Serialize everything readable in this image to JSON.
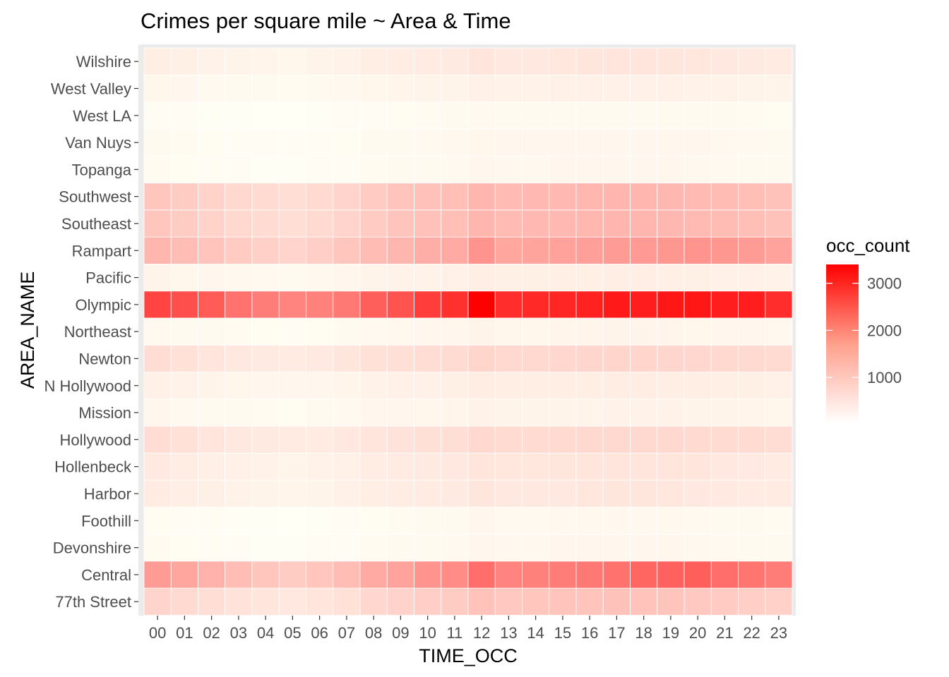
{
  "chart_data": {
    "type": "heatmap",
    "title": "Crimes per square mile ~ Area & Time",
    "xlabel": "TIME_OCC",
    "ylabel": "AREA_NAME",
    "x": [
      "00",
      "01",
      "02",
      "03",
      "04",
      "05",
      "06",
      "07",
      "08",
      "09",
      "10",
      "11",
      "12",
      "13",
      "14",
      "15",
      "16",
      "17",
      "18",
      "19",
      "20",
      "21",
      "22",
      "23"
    ],
    "y": [
      "77th Street",
      "Central",
      "Devonshire",
      "Foothill",
      "Harbor",
      "Hollenbeck",
      "Hollywood",
      "Mission",
      "N Hollywood",
      "Newton",
      "Northeast",
      "Olympic",
      "Pacific",
      "Rampart",
      "Southeast",
      "Southwest",
      "Topanga",
      "Van Nuys",
      "West LA",
      "West Valley",
      "Wilshire"
    ],
    "values": [
      [
        600,
        520,
        470,
        410,
        360,
        330,
        380,
        420,
        560,
        610,
        660,
        700,
        820,
        760,
        780,
        790,
        810,
        830,
        820,
        800,
        760,
        720,
        680,
        640
      ],
      [
        1350,
        1200,
        1050,
        900,
        780,
        700,
        780,
        900,
        1150,
        1250,
        1450,
        1550,
        1950,
        1650,
        1700,
        1750,
        1800,
        1900,
        2050,
        2100,
        2150,
        1950,
        1850,
        1750
      ],
      [
        80,
        70,
        60,
        50,
        45,
        40,
        50,
        60,
        80,
        90,
        100,
        110,
        140,
        120,
        120,
        130,
        130,
        130,
        130,
        130,
        120,
        110,
        100,
        90
      ],
      [
        70,
        60,
        50,
        45,
        40,
        35,
        45,
        55,
        70,
        80,
        90,
        100,
        130,
        110,
        110,
        120,
        120,
        120,
        120,
        120,
        110,
        100,
        90,
        80
      ],
      [
        300,
        260,
        230,
        200,
        180,
        160,
        180,
        210,
        260,
        280,
        300,
        310,
        360,
        330,
        330,
        340,
        350,
        360,
        360,
        350,
        340,
        320,
        300,
        290
      ],
      [
        320,
        280,
        240,
        210,
        190,
        170,
        190,
        220,
        270,
        290,
        310,
        330,
        380,
        350,
        350,
        360,
        370,
        380,
        380,
        370,
        360,
        340,
        320,
        300
      ],
      [
        480,
        430,
        380,
        340,
        310,
        290,
        300,
        330,
        380,
        410,
        440,
        470,
        540,
        500,
        510,
        520,
        530,
        540,
        540,
        530,
        520,
        510,
        500,
        480
      ],
      [
        130,
        110,
        100,
        90,
        80,
        70,
        90,
        110,
        130,
        140,
        150,
        160,
        200,
        170,
        170,
        180,
        180,
        190,
        190,
        190,
        180,
        170,
        160,
        150
      ],
      [
        220,
        190,
        170,
        150,
        140,
        130,
        140,
        160,
        200,
        210,
        220,
        230,
        270,
        250,
        250,
        260,
        260,
        270,
        270,
        260,
        250,
        240,
        230,
        220
      ],
      [
        480,
        430,
        380,
        340,
        310,
        290,
        320,
        360,
        420,
        450,
        480,
        510,
        580,
        540,
        550,
        560,
        570,
        580,
        580,
        570,
        560,
        540,
        520,
        500
      ],
      [
        110,
        100,
        90,
        80,
        70,
        60,
        75,
        90,
        110,
        120,
        130,
        140,
        170,
        150,
        150,
        160,
        160,
        170,
        170,
        160,
        150,
        140,
        130,
        120
      ],
      [
        2500,
        2350,
        2200,
        1900,
        1750,
        1650,
        1700,
        1800,
        2150,
        2300,
        2600,
        2750,
        3400,
        2800,
        2850,
        2900,
        2950,
        3050,
        3000,
        3100,
        3100,
        3000,
        3000,
        2800
      ],
      [
        170,
        150,
        130,
        120,
        110,
        100,
        120,
        140,
        180,
        190,
        200,
        210,
        250,
        230,
        230,
        240,
        240,
        250,
        250,
        240,
        230,
        220,
        210,
        200
      ],
      [
        1000,
        900,
        800,
        720,
        650,
        600,
        680,
        780,
        920,
        1000,
        1100,
        1150,
        1450,
        1200,
        1230,
        1260,
        1300,
        1350,
        1380,
        1400,
        1450,
        1400,
        1350,
        1250
      ],
      [
        780,
        700,
        620,
        550,
        500,
        460,
        520,
        600,
        720,
        790,
        850,
        880,
        1000,
        930,
        950,
        960,
        980,
        1000,
        990,
        970,
        940,
        910,
        880,
        840
      ],
      [
        780,
        700,
        620,
        550,
        500,
        460,
        520,
        600,
        720,
        790,
        850,
        880,
        1000,
        930,
        950,
        960,
        980,
        1000,
        990,
        970,
        940,
        910,
        880,
        840
      ],
      [
        80,
        70,
        60,
        50,
        45,
        40,
        50,
        60,
        80,
        90,
        100,
        110,
        140,
        120,
        120,
        130,
        130,
        130,
        130,
        130,
        120,
        110,
        100,
        90
      ],
      [
        90,
        80,
        70,
        60,
        55,
        50,
        60,
        70,
        90,
        100,
        110,
        120,
        150,
        130,
        130,
        140,
        140,
        140,
        140,
        140,
        130,
        120,
        110,
        100
      ],
      [
        60,
        50,
        45,
        40,
        35,
        30,
        40,
        50,
        60,
        70,
        80,
        90,
        110,
        95,
        95,
        100,
        100,
        100,
        100,
        100,
        95,
        90,
        80,
        70
      ],
      [
        150,
        130,
        110,
        100,
        90,
        80,
        100,
        120,
        150,
        160,
        170,
        180,
        220,
        200,
        200,
        210,
        210,
        220,
        220,
        210,
        200,
        190,
        180,
        170
      ],
      [
        260,
        230,
        200,
        180,
        160,
        150,
        170,
        200,
        250,
        270,
        290,
        310,
        380,
        340,
        340,
        350,
        360,
        370,
        370,
        360,
        350,
        330,
        310,
        290
      ]
    ],
    "color_scale": {
      "low": "#ffffff",
      "high": "#ff0000",
      "min": 30,
      "max": 3400
    },
    "legend": {
      "title": "occ_count",
      "ticks": [
        1000,
        2000,
        3000
      ],
      "placement": "right"
    }
  }
}
